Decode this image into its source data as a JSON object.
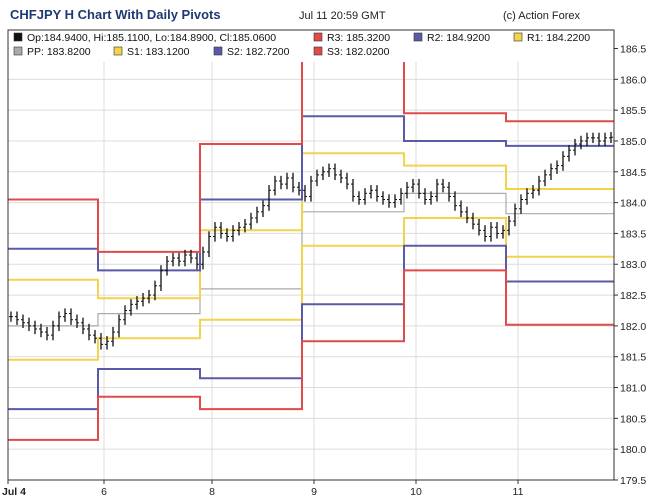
{
  "header": {
    "title": "CHFJPY H Chart With Daily Pivots",
    "timestamp": "Jul 11 20:59 GMT",
    "credit": "(c) Action Forex"
  },
  "legend": [
    {
      "label": "Op:184.9400, Hi:185.1100, Lo:184.8900, Cl:185.0600",
      "color": "#111111"
    },
    {
      "label": "R3: 185.3200",
      "color": "#e04a4a"
    },
    {
      "label": "R2: 184.9200",
      "color": "#5a5aa8"
    },
    {
      "label": "R1: 184.2200",
      "color": "#f2d34a"
    },
    {
      "label": "PP: 183.8200",
      "color": "#aaaaaa"
    },
    {
      "label": "S1: 183.1200",
      "color": "#f2d34a"
    },
    {
      "label": "S2: 182.7200",
      "color": "#5a5aa8"
    },
    {
      "label": "S3: 182.0200",
      "color": "#e04a4a"
    }
  ],
  "chart_data": {
    "type": "line",
    "title": "CHFJPY H Chart With Daily Pivots",
    "xlabel": "",
    "ylabel": "",
    "ylim": [
      179.5,
      186.8
    ],
    "y_ticks": [
      "179.5",
      "180.0",
      "180.5",
      "181.0",
      "181.5",
      "182.0",
      "182.5",
      "183.0",
      "183.5",
      "184.0",
      "184.5",
      "185.0",
      "185.5",
      "186.0",
      "186.5"
    ],
    "x_ticks": [
      {
        "label": "Jul 4",
        "hour": 0
      },
      {
        "label": "6",
        "hour": 16
      },
      {
        "label": "8",
        "hour": 34
      },
      {
        "label": "9",
        "hour": 51
      },
      {
        "label": "10",
        "hour": 68
      },
      {
        "label": "11",
        "hour": 85
      }
    ],
    "x_range_hours": [
      0,
      101
    ],
    "grid": true,
    "pivot_days": [
      {
        "start": 0,
        "end": 15,
        "R3": 184.05,
        "R2": 183.25,
        "R1": 182.75,
        "PP": 182.0,
        "S1": 181.45,
        "S2": 180.65,
        "S3": 180.15
      },
      {
        "start": 15,
        "end": 32,
        "R3": 183.2,
        "R2": 182.9,
        "R1": 182.45,
        "PP": 182.2,
        "S1": 181.8,
        "S2": 181.3,
        "S3": 180.85
      },
      {
        "start": 32,
        "end": 49,
        "R3": 184.95,
        "R2": 184.05,
        "R1": 183.55,
        "PP": 182.6,
        "S1": 182.1,
        "S2": 181.15,
        "S3": 180.65
      },
      {
        "start": 49,
        "end": 66,
        "R3": 186.35,
        "R2": 185.4,
        "R1": 184.8,
        "PP": 183.85,
        "S1": 183.3,
        "S2": 182.35,
        "S3": 181.75
      },
      {
        "start": 66,
        "end": 83,
        "R3": 185.45,
        "R2": 185.0,
        "R1": 184.6,
        "PP": 184.15,
        "S1": 183.75,
        "S2": 183.3,
        "S3": 182.9
      },
      {
        "start": 83,
        "end": 101,
        "R3": 185.32,
        "R2": 184.92,
        "R1": 184.22,
        "PP": 183.82,
        "S1": 183.12,
        "S2": 182.72,
        "S3": 182.02
      }
    ],
    "pivot_colors": {
      "R3": "#e04a4a",
      "R2": "#5a5aa8",
      "R1": "#f2d34a",
      "PP": "#aaaaaa",
      "S1": "#f2d34a",
      "S2": "#5a5aa8",
      "S3": "#e04a4a"
    },
    "price_series": {
      "name": "CHFJPY",
      "hours": [
        0,
        1,
        2,
        3,
        4,
        5,
        6,
        7,
        8,
        9,
        10,
        11,
        12,
        13,
        14,
        15,
        16,
        17,
        18,
        19,
        20,
        21,
        22,
        23,
        24,
        25,
        26,
        27,
        28,
        29,
        30,
        31,
        32,
        33,
        34,
        35,
        36,
        37,
        38,
        39,
        40,
        41,
        42,
        43,
        44,
        45,
        46,
        47,
        48,
        49,
        50,
        51,
        52,
        53,
        54,
        55,
        56,
        57,
        58,
        59,
        60,
        61,
        62,
        63,
        64,
        65,
        66,
        67,
        68,
        69,
        70,
        71,
        72,
        73,
        74,
        75,
        76,
        77,
        78,
        79,
        80,
        81,
        82,
        83,
        84,
        85,
        86,
        87,
        88,
        89,
        90,
        91,
        92,
        93,
        94,
        95,
        96,
        97,
        98,
        99,
        100
      ],
      "close": [
        182.15,
        182.1,
        182.05,
        182.0,
        181.95,
        181.9,
        181.85,
        182.0,
        182.15,
        182.2,
        182.1,
        182.05,
        181.95,
        181.85,
        181.8,
        181.7,
        181.75,
        181.9,
        182.1,
        182.25,
        182.35,
        182.4,
        182.45,
        182.5,
        182.65,
        182.9,
        183.05,
        183.1,
        183.05,
        183.15,
        183.1,
        183.0,
        183.2,
        183.45,
        183.6,
        183.5,
        183.45,
        183.55,
        183.6,
        183.65,
        183.75,
        183.85,
        183.95,
        184.2,
        184.35,
        184.3,
        184.4,
        184.25,
        184.2,
        184.1,
        184.35,
        184.45,
        184.5,
        184.55,
        184.45,
        184.4,
        184.3,
        184.1,
        184.05,
        184.15,
        184.2,
        184.1,
        184.05,
        184.0,
        184.05,
        184.15,
        184.25,
        184.3,
        184.15,
        184.05,
        184.1,
        184.3,
        184.25,
        184.1,
        183.95,
        183.85,
        183.75,
        183.65,
        183.55,
        183.45,
        183.6,
        183.5,
        183.55,
        183.7,
        183.9,
        184.05,
        184.15,
        184.2,
        184.35,
        184.45,
        184.55,
        184.6,
        184.75,
        184.85,
        184.95,
        185.0,
        185.05,
        185.05,
        185.0,
        185.05,
        185.06
      ],
      "range": 0.12
    }
  }
}
